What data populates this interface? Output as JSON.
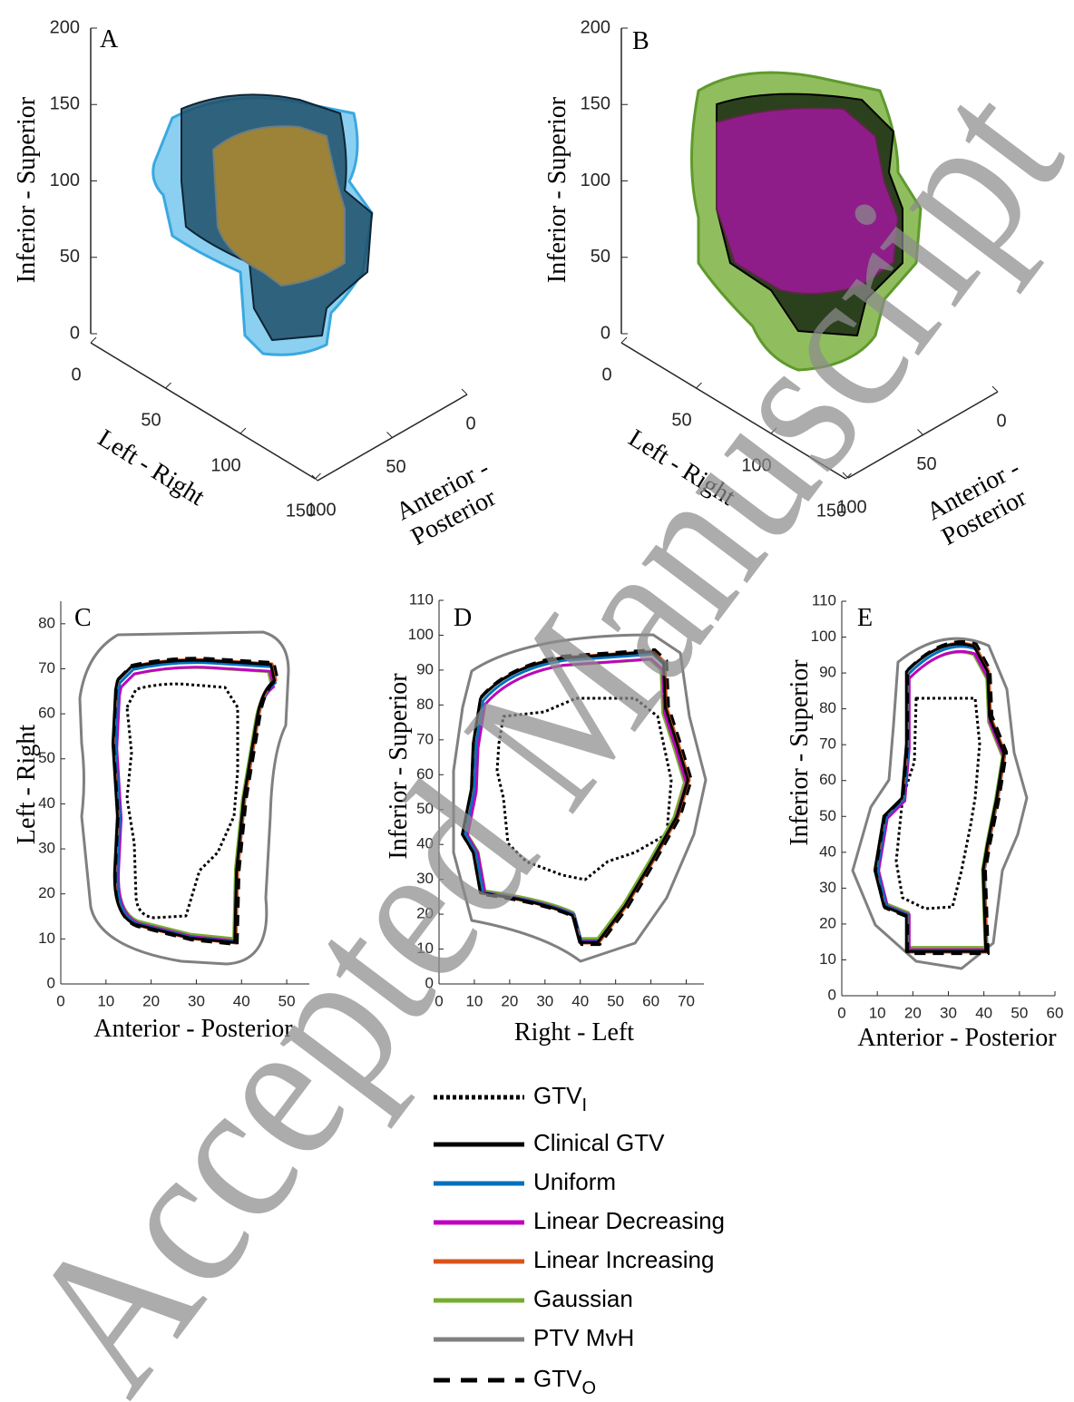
{
  "panels": [
    {
      "label": "A",
      "zlabel": "Inferior - Superior",
      "xlabel": "Left - Right",
      "ylabel": [
        "Anterior -",
        "Posterior"
      ],
      "zlim": [
        0,
        200
      ],
      "zticks": [
        0,
        50,
        100,
        150,
        200
      ],
      "xlim": [
        0,
        150
      ],
      "xticks": [
        0,
        50,
        100,
        150
      ],
      "ylim": [
        0,
        100
      ],
      "yticks": [
        0,
        50,
        100
      ]
    },
    {
      "label": "B",
      "zlabel": "Inferior - Superior",
      "xlabel": "Left - Right",
      "ylabel": [
        "Anterior -",
        "Posterior"
      ],
      "zlim": [
        0,
        200
      ],
      "zticks": [
        0,
        50,
        100,
        150,
        200
      ],
      "xlim": [
        0,
        150
      ],
      "xticks": [
        0,
        50,
        100,
        150
      ],
      "ylim": [
        0,
        100
      ],
      "yticks": [
        0,
        50,
        100
      ]
    },
    {
      "label": "C",
      "xlabel": "Anterior - Posterior",
      "ylabel": "Left - Right",
      "xlim": [
        0,
        55
      ],
      "ylim": [
        0,
        85
      ],
      "xticks": [
        0,
        10,
        20,
        30,
        40,
        50
      ],
      "yticks": [
        0,
        10,
        20,
        30,
        40,
        50,
        60,
        70,
        80
      ]
    },
    {
      "label": "D",
      "xlabel": "Right - Left",
      "ylabel": "Inferior - Superior",
      "xlim": [
        0,
        75
      ],
      "ylim": [
        0,
        110
      ],
      "xticks": [
        0,
        10,
        20,
        30,
        40,
        50,
        60,
        70
      ],
      "yticks": [
        0,
        10,
        20,
        30,
        40,
        50,
        60,
        70,
        80,
        90,
        100,
        110
      ]
    },
    {
      "label": "E",
      "xlabel": "Anterior - Posterior",
      "ylabel": "Inferior - Superior",
      "xlim": [
        0,
        60
      ],
      "ylim": [
        0,
        110
      ],
      "xticks": [
        0,
        10,
        20,
        30,
        40,
        50,
        60
      ],
      "yticks": [
        0,
        10,
        20,
        30,
        40,
        50,
        60,
        70,
        80,
        90,
        100,
        110
      ]
    }
  ],
  "legend": [
    {
      "name": "GTV",
      "sub": "I",
      "color": "#000000",
      "style": "dotted"
    },
    {
      "name": "Clinical GTV",
      "color": "#000000",
      "style": "solid"
    },
    {
      "name": "Uniform",
      "color": "#0072bd",
      "style": "solid"
    },
    {
      "name": "Linear Decreasing",
      "color": "#c000c0",
      "style": "solid"
    },
    {
      "name": "Linear Increasing",
      "color": "#d95319",
      "style": "solid"
    },
    {
      "name": "Gaussian",
      "color": "#77ac30",
      "style": "solid"
    },
    {
      "name": "PTV MvH",
      "color": "#808080",
      "style": "solid"
    },
    {
      "name": "GTV",
      "sub": "O",
      "color": "#000000",
      "style": "dashed"
    }
  ],
  "watermark": "Accepted Manuscript"
}
